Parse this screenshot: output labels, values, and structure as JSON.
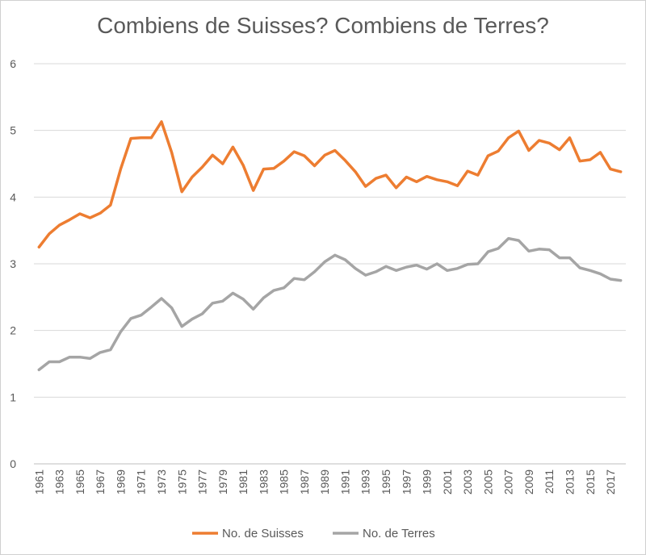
{
  "chart_data": {
    "type": "line",
    "title": "Combiens de Suisses? Combiens de Terres?",
    "xlabel": "",
    "ylabel": "",
    "ylim": [
      0,
      6
    ],
    "yticks": [
      "0",
      "1",
      "2",
      "3",
      "4",
      "5",
      "6"
    ],
    "grid": true,
    "legend_position": "bottom",
    "x": [
      1961,
      1962,
      1963,
      1964,
      1965,
      1966,
      1967,
      1968,
      1969,
      1970,
      1971,
      1972,
      1973,
      1974,
      1975,
      1976,
      1977,
      1978,
      1979,
      1980,
      1981,
      1982,
      1983,
      1984,
      1985,
      1986,
      1987,
      1988,
      1989,
      1990,
      1991,
      1992,
      1993,
      1994,
      1995,
      1996,
      1997,
      1998,
      1999,
      2000,
      2001,
      2002,
      2003,
      2004,
      2005,
      2006,
      2007,
      2008,
      2009,
      2010,
      2011,
      2012,
      2013,
      2014,
      2015,
      2016,
      2017,
      2018
    ],
    "xtick_labels": [
      "1961",
      "1963",
      "1965",
      "1967",
      "1969",
      "1971",
      "1973",
      "1975",
      "1977",
      "1979",
      "1981",
      "1983",
      "1985",
      "1987",
      "1989",
      "1991",
      "1993",
      "1995",
      "1997",
      "1999",
      "2001",
      "2003",
      "2005",
      "2007",
      "2009",
      "2011",
      "2013",
      "2015",
      "2017"
    ],
    "series": [
      {
        "name": "No. de Suisses",
        "color": "#ED7D31",
        "values": [
          3.25,
          3.45,
          3.58,
          3.66,
          3.75,
          3.69,
          3.76,
          3.88,
          4.42,
          4.88,
          4.89,
          4.89,
          5.13,
          4.67,
          4.08,
          4.3,
          4.45,
          4.63,
          4.5,
          4.75,
          4.48,
          4.1,
          4.42,
          4.43,
          4.54,
          4.68,
          4.62,
          4.47,
          4.63,
          4.7,
          4.55,
          4.38,
          4.16,
          4.28,
          4.33,
          4.14,
          4.3,
          4.23,
          4.31,
          4.26,
          4.23,
          4.17,
          4.39,
          4.33,
          4.62,
          4.69,
          4.89,
          4.99,
          4.7,
          4.85,
          4.81,
          4.71,
          4.89,
          4.54,
          4.56,
          4.67,
          4.42,
          4.38
        ]
      },
      {
        "name": "No. de Terres",
        "color": "#A5A5A5",
        "values": [
          1.41,
          1.53,
          1.53,
          1.6,
          1.6,
          1.58,
          1.67,
          1.71,
          1.98,
          2.18,
          2.23,
          2.35,
          2.48,
          2.34,
          2.06,
          2.17,
          2.25,
          2.41,
          2.44,
          2.56,
          2.47,
          2.32,
          2.49,
          2.6,
          2.64,
          2.78,
          2.76,
          2.88,
          3.03,
          3.13,
          3.06,
          2.93,
          2.83,
          2.88,
          2.96,
          2.9,
          2.95,
          2.98,
          2.92,
          3.0,
          2.9,
          2.93,
          2.99,
          3.0,
          3.18,
          3.23,
          3.38,
          3.35,
          3.19,
          3.22,
          3.21,
          3.09,
          3.09,
          2.94,
          2.9,
          2.85,
          2.77,
          2.75
        ]
      }
    ]
  }
}
